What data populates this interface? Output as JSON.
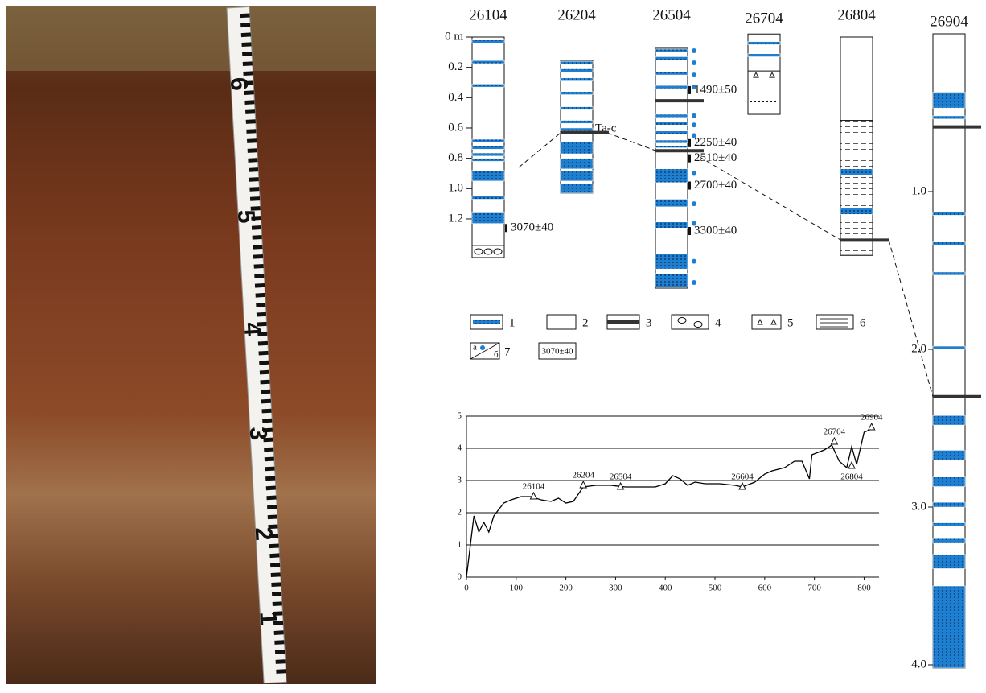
{
  "photo": {
    "ruler_labels": [
      "1",
      "2",
      "3",
      "4",
      "5",
      "6"
    ]
  },
  "depth_axis": {
    "ticks": [
      {
        "value": 0,
        "label": "0 m"
      },
      0.2,
      0.4,
      0.6,
      0.8,
      {
        "value": 1,
        "label": "1.0"
      },
      1.2
    ]
  },
  "depth_axis_26904": {
    "ticks": [
      {
        "value": 1,
        "label": "1.0"
      },
      {
        "value": 2,
        "label": "2.0"
      },
      {
        "value": 3,
        "label": "3.0"
      },
      {
        "value": 4,
        "label": "4.0"
      }
    ]
  },
  "columns": [
    {
      "name": "26104",
      "top": 0,
      "bottom": 1.455,
      "blue": [
        [
          0.02,
          0.04
        ],
        [
          0.155,
          0.175
        ],
        [
          0.31,
          0.33
        ],
        [
          0.675,
          0.695
        ],
        [
          0.72,
          0.74
        ],
        [
          0.765,
          0.785
        ],
        [
          0.8,
          0.82
        ],
        [
          0.88,
          0.95
        ],
        [
          1.05,
          1.07
        ],
        [
          1.16,
          1.23
        ]
      ],
      "gravel": [
        [
          1.375,
          1.455
        ]
      ],
      "tephra": [],
      "triangles": [],
      "dotted": [],
      "hatch": [],
      "dots": [],
      "dates": [
        {
          "label": "3070±40",
          "depth": 1.26
        }
      ]
    },
    {
      "name": "26204",
      "top": 0.154,
      "bottom": 1.03,
      "blue": [
        [
          0.16,
          0.18
        ],
        [
          0.21,
          0.23
        ],
        [
          0.27,
          0.29
        ],
        [
          0.36,
          0.38
        ],
        [
          0.46,
          0.48
        ],
        [
          0.55,
          0.57
        ],
        [
          0.6,
          0.62
        ],
        [
          0.69,
          0.77
        ],
        [
          0.8,
          0.87
        ],
        [
          0.88,
          0.95
        ],
        [
          0.97,
          1.03
        ]
      ],
      "gravel": [],
      "tephra": [
        0.63
      ],
      "triangles": [],
      "dotted": [],
      "hatch": [],
      "dots": [],
      "dates": [],
      "note": "Ta-c"
    },
    {
      "name": "26504",
      "top": 0.074,
      "bottom": 1.657,
      "blue": [
        [
          0.08,
          0.1
        ],
        [
          0.13,
          0.15
        ],
        [
          0.23,
          0.25
        ],
        [
          0.32,
          0.34
        ],
        [
          0.51,
          0.53
        ],
        [
          0.56,
          0.58
        ],
        [
          0.62,
          0.64
        ],
        [
          0.68,
          0.7
        ],
        [
          0.72,
          0.73
        ],
        [
          0.87,
          0.96
        ],
        [
          1.07,
          1.12
        ],
        [
          1.22,
          1.26
        ],
        [
          1.43,
          1.53
        ],
        [
          1.56,
          1.65
        ]
      ],
      "gravel": [],
      "tephra": [
        0.42,
        0.75
      ],
      "triangles": [],
      "dotted": [],
      "hatch": [],
      "dots": [
        0.09,
        0.17,
        0.25,
        0.33,
        0.52,
        0.58,
        0.65,
        0.9,
        1.1,
        1.23,
        1.48,
        1.62
      ],
      "dates": [
        {
          "label": "1490±50",
          "depth": 0.35
        },
        {
          "label": "2250±40",
          "depth": 0.7
        },
        {
          "label": "2510±40",
          "depth": 0.8
        },
        {
          "label": "2700±40",
          "depth": 0.98
        },
        {
          "label": "3300±40",
          "depth": 1.28
        }
      ]
    },
    {
      "name": "26704",
      "top": -0.02,
      "bottom": 0.51,
      "blue": [
        [
          0.03,
          0.05
        ],
        [
          0.11,
          0.13
        ]
      ],
      "gravel": [],
      "tephra": [],
      "triangles": [
        0.25
      ],
      "dotted": [
        0.425
      ],
      "hatch": [],
      "dots": [],
      "dates": []
    },
    {
      "name": "26804",
      "top": 0,
      "bottom": 1.44,
      "blue": [
        [
          0.87,
          0.91
        ],
        [
          1.13,
          1.17
        ]
      ],
      "gravel": [],
      "tephra": [
        1.34
      ],
      "triangles": [],
      "dotted": [],
      "hatch": [
        [
          0.55,
          1.44
        ]
      ],
      "dots": [],
      "dates": []
    }
  ],
  "column_26904": {
    "name": "26904",
    "top": 0,
    "bottom": 4.02,
    "blue": [
      [
        0.37,
        0.47
      ],
      [
        0.52,
        0.54
      ],
      [
        1.13,
        1.15
      ],
      [
        1.32,
        1.34
      ],
      [
        1.51,
        1.53
      ],
      [
        1.98,
        2.0
      ],
      [
        2.42,
        2.48
      ],
      [
        2.64,
        2.7
      ],
      [
        2.81,
        2.87
      ],
      [
        2.97,
        3.0
      ],
      [
        3.1,
        3.12
      ],
      [
        3.2,
        3.23
      ],
      [
        3.3,
        3.39
      ],
      [
        3.5,
        4.02
      ]
    ],
    "tephra": [
      0.59,
      2.3
    ]
  },
  "legend": {
    "items": [
      "1",
      "2",
      "3",
      "4",
      "5",
      "6",
      "7"
    ],
    "sub": [
      "a",
      "б"
    ],
    "sample": "3070±40"
  },
  "chart_data": {
    "type": "line",
    "color": "#000",
    "x": [
      0,
      15,
      25,
      35,
      45,
      55,
      60,
      75,
      90,
      110,
      130,
      150,
      170,
      185,
      200,
      215,
      235,
      260,
      290,
      320,
      350,
      380,
      400,
      415,
      430,
      445,
      460,
      480,
      510,
      540,
      555,
      580,
      600,
      615,
      640,
      660,
      675,
      690,
      695,
      720,
      735,
      750,
      765,
      775,
      785,
      800,
      815
    ],
    "values": [
      0,
      1.9,
      1.4,
      1.7,
      1.4,
      1.9,
      2.0,
      2.3,
      2.4,
      2.5,
      2.5,
      2.4,
      2.35,
      2.45,
      2.3,
      2.35,
      2.8,
      2.85,
      2.85,
      2.8,
      2.8,
      2.8,
      2.9,
      3.15,
      3.05,
      2.85,
      2.95,
      2.9,
      2.9,
      2.85,
      2.8,
      2.95,
      3.2,
      3.3,
      3.4,
      3.6,
      3.6,
      3.05,
      3.8,
      3.95,
      4.1,
      3.6,
      3.4,
      4.05,
      3.5,
      4.5,
      4.6
    ],
    "points": {
      "x": [
        135,
        235,
        310,
        555,
        740,
        775,
        815
      ],
      "values": [
        2.5,
        2.85,
        2.8,
        2.8,
        4.2,
        3.45,
        4.65
      ],
      "labels": [
        "26104",
        "26204",
        "26504",
        "26604",
        "26704",
        "26804",
        "26904"
      ]
    },
    "xlim": [
      0,
      830
    ],
    "ylim": [
      0,
      5
    ],
    "xticks": [
      0,
      100,
      200,
      300,
      400,
      500,
      600,
      700,
      800
    ],
    "yticks": [
      0,
      1,
      2,
      3,
      4,
      5
    ],
    "grid": true
  }
}
